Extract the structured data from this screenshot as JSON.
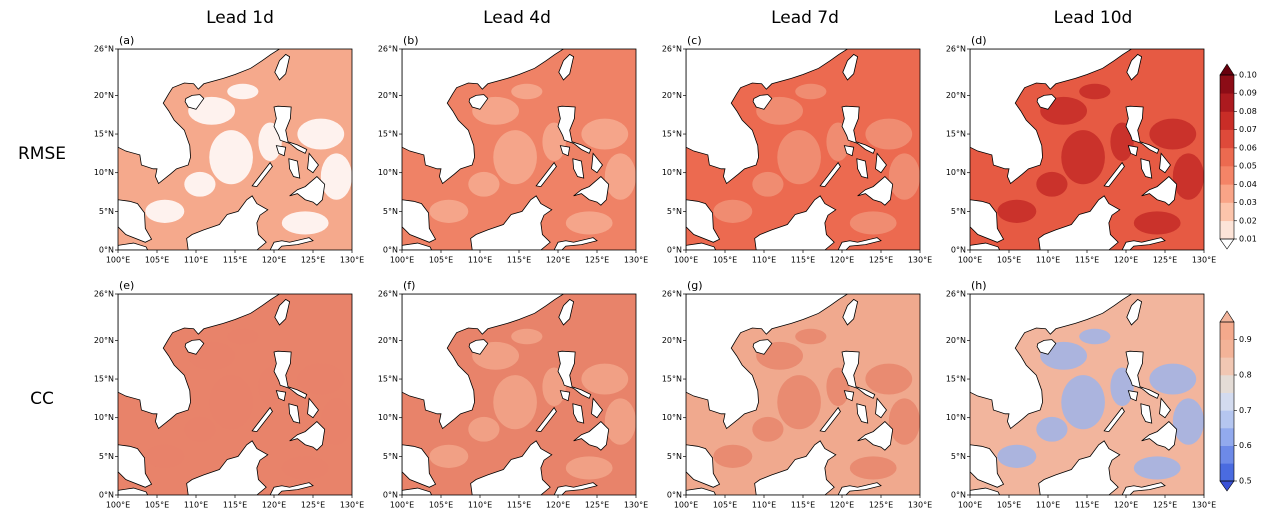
{
  "column_titles": [
    "Lead 1d",
    "Lead 4d",
    "Lead 7d",
    "Lead 10d"
  ],
  "map": {
    "xlim": [
      100,
      130
    ],
    "ylim": [
      0,
      26
    ],
    "xticks": [
      {
        "value": 100,
        "label": "100°E"
      },
      {
        "value": 105,
        "label": "105°E"
      },
      {
        "value": 110,
        "label": "110°E"
      },
      {
        "value": 115,
        "label": "115°E"
      },
      {
        "value": 120,
        "label": "120°E"
      },
      {
        "value": 125,
        "label": "125°E"
      },
      {
        "value": 130,
        "label": "130°E"
      }
    ],
    "yticks": [
      {
        "value": 0,
        "label": "0°N"
      },
      {
        "value": 5,
        "label": "5°N"
      },
      {
        "value": 10,
        "label": "10°N"
      },
      {
        "value": 15,
        "label": "15°N"
      },
      {
        "value": 20,
        "label": "20°N"
      },
      {
        "value": 26,
        "label": "26°N"
      }
    ]
  },
  "rows": [
    {
      "label": "RMSE",
      "panels": [
        {
          "label": "(a)",
          "fill": "#f5a98c",
          "patch": "#ffffff"
        },
        {
          "label": "(b)",
          "fill": "#ef8266",
          "patch": "#f6ab90"
        },
        {
          "label": "(c)",
          "fill": "#ec6a50",
          "patch": "#f19277"
        },
        {
          "label": "(d)",
          "fill": "#e65a43",
          "patch": "#c42c27"
        }
      ],
      "colorbar": {
        "lim": [
          0.01,
          0.1
        ],
        "ticks": [
          0.01,
          0.02,
          0.03,
          0.04,
          0.05,
          0.06,
          0.07,
          0.08,
          0.09,
          {
            "value": 0.1,
            "label": "0.10"
          }
        ],
        "colors": [
          "#fde4d8",
          "#fcc4ab",
          "#f9a487",
          "#f48467",
          "#ec6a50",
          "#de4a3a",
          "#c92d27",
          "#ac1a1f",
          "#8c0c16"
        ],
        "under_color": "#ffffff",
        "over_color": "#67000d"
      }
    },
    {
      "label": "CC",
      "panels": [
        {
          "label": "(e)",
          "fill": "#e8836a",
          "patch": "#e8836a"
        },
        {
          "label": "(f)",
          "fill": "#e8836a",
          "patch": "#f2a68a"
        },
        {
          "label": "(g)",
          "fill": "#f0a98e",
          "patch": "#e8866c"
        },
        {
          "label": "(h)",
          "fill": "#f2b59d",
          "patch": "#9fb4ea"
        }
      ],
      "colorbar": {
        "lim": [
          0.5,
          0.95
        ],
        "ticks": [
          0.5,
          0.6,
          0.7,
          0.8,
          0.9
        ],
        "colors": [
          "#4a6be0",
          "#6d8ae8",
          "#92aaee",
          "#b5c6f0",
          "#d3dbef",
          "#e4dcd6",
          "#f1c7b3",
          "#f3b398",
          "#f4a98c"
        ],
        "under_color": "#3a52d6",
        "over_color": "#f3b59c"
      }
    }
  ]
}
